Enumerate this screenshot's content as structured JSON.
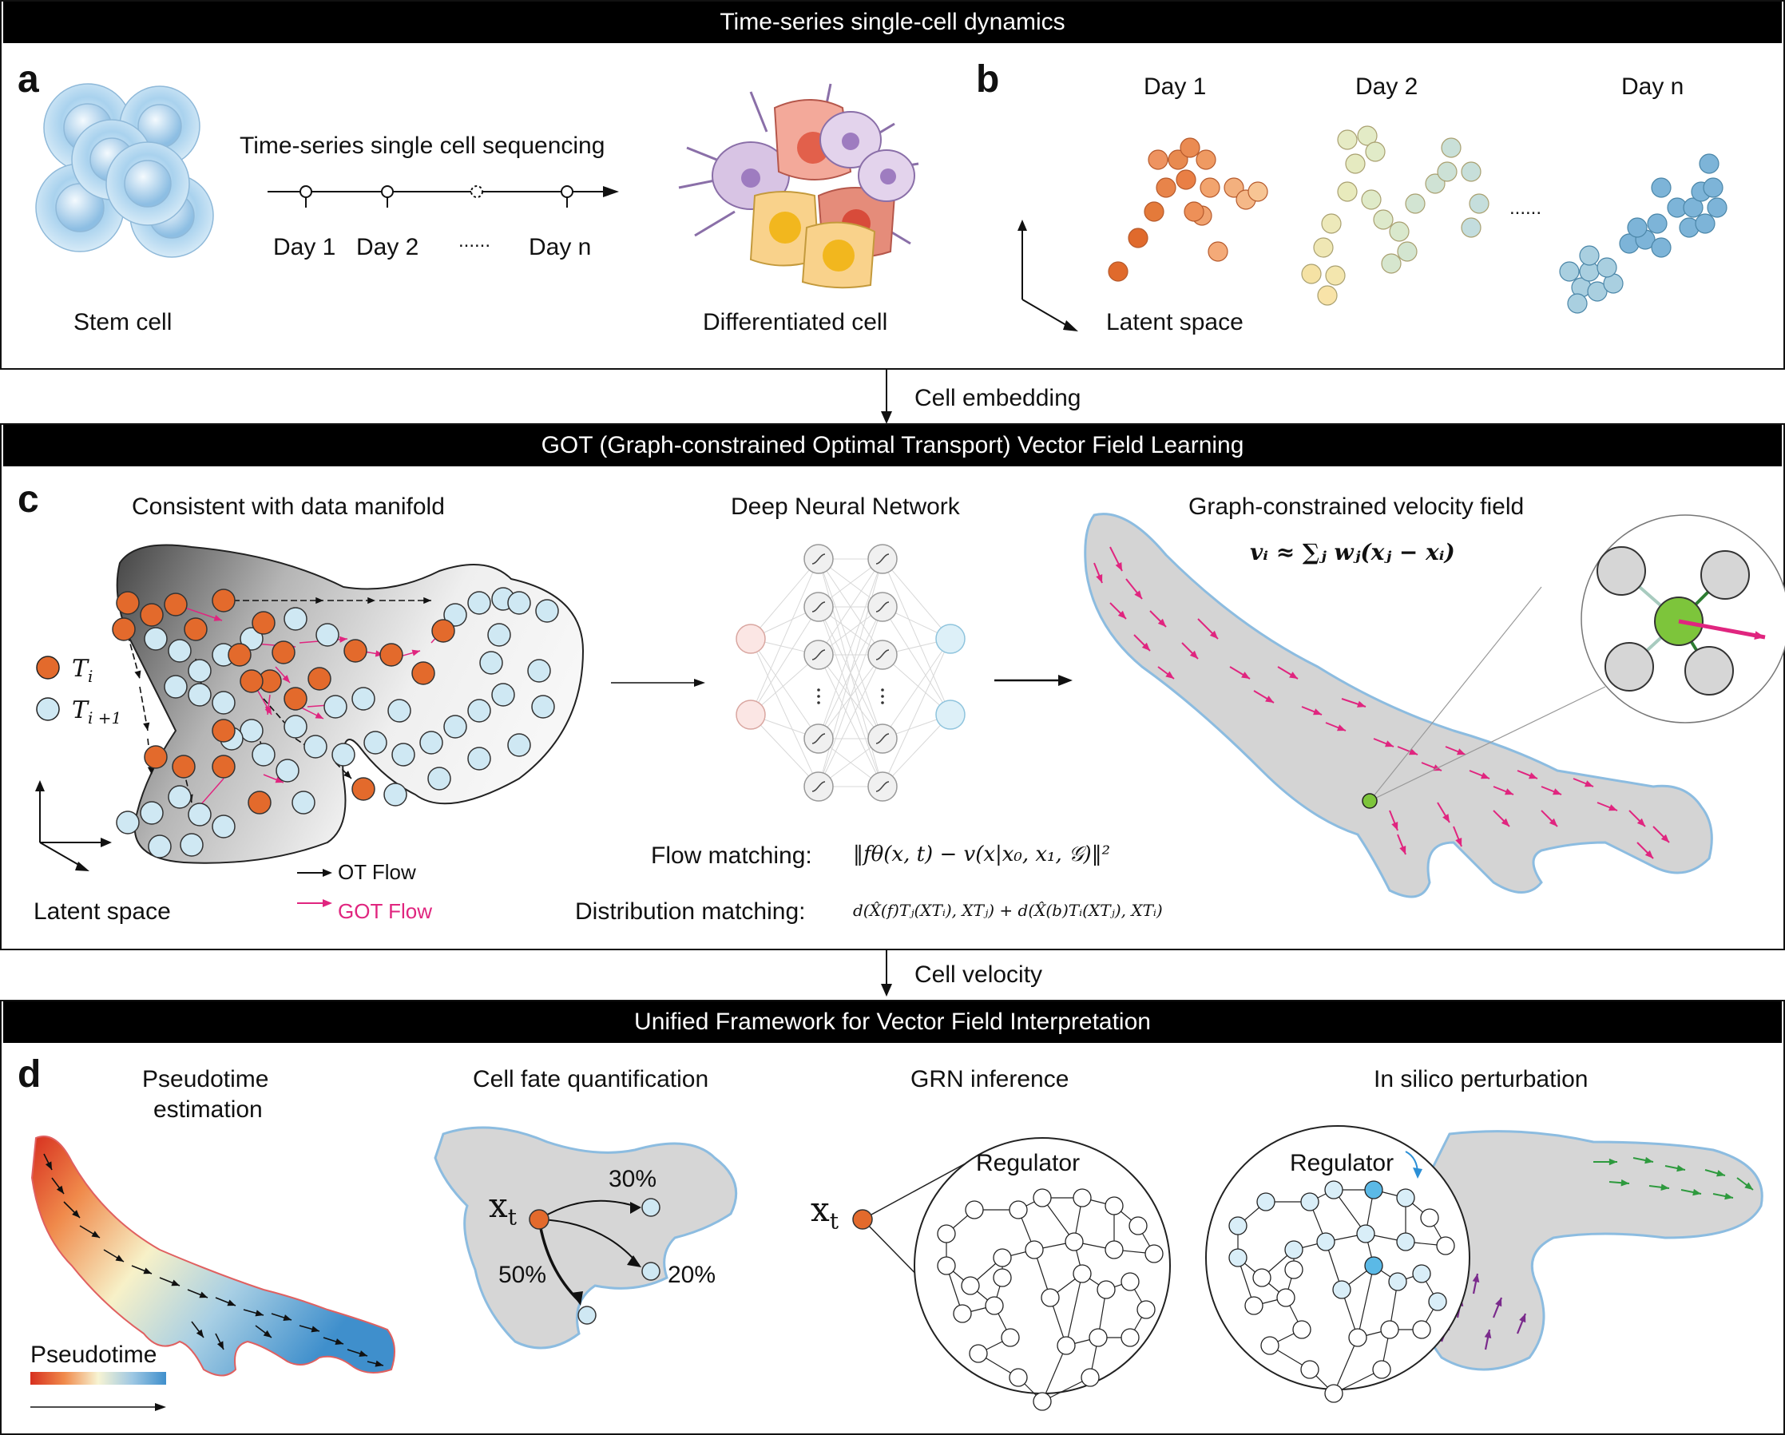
{
  "banners": {
    "top": "Time-series single-cell dynamics",
    "middle": "GOT (Graph-constrained Optimal Transport) Vector Field Learning",
    "bottom": "Unified Framework for Vector Field Interpretation"
  },
  "connectors": {
    "embedding": "Cell embedding",
    "velocity": "Cell velocity"
  },
  "panel_a": {
    "letter": "a",
    "stem_label": "Stem cell",
    "sequencing_label": "Time-series single cell sequencing",
    "timeline": [
      "Day 1",
      "Day 2",
      "......",
      "Day n"
    ],
    "differentiated_label": "Differentiated cell"
  },
  "panel_b": {
    "letter": "b",
    "days": [
      "Day 1",
      "Day 2",
      "Day n"
    ],
    "dots": "......",
    "space_label": "Latent space"
  },
  "panel_c": {
    "letter": "c",
    "manifold_title": "Consistent with data manifold",
    "legend_ti": "T",
    "legend_ti_sub": "i",
    "legend_ti1": "T",
    "legend_ti1_sub": "i +1",
    "space_label": "Latent space",
    "ot_flow": "OT Flow",
    "got_flow": "GOT Flow",
    "dnn_title": "Deep Neural Network",
    "velocity_title": "Graph-constrained velocity field",
    "formula": "vᵢ ≈ ∑ⱼ wⱼ(xⱼ − xᵢ)",
    "flow_matching_label": "Flow matching:",
    "flow_matching_formula": "‖fθ(x, t) − v(x|x₀, x₁, 𝒢)‖²",
    "distribution_matching_label": "Distribution matching:",
    "distribution_matching_formula": "d(X̂(f)Tⱼ(XTᵢ), XTⱼ) + d(X̂(b)Tᵢ(XTⱼ), XTᵢ)"
  },
  "panel_d": {
    "letter": "d",
    "pseudotime_title_1": "Pseudotime",
    "pseudotime_title_2": "estimation",
    "pseudotime_legend": "Pseudotime",
    "fate_title": "Cell fate quantification",
    "xt_label": "x",
    "xt_sub": "t",
    "fate_pct_top": "30%",
    "fate_pct_mid": "20%",
    "fate_pct_left": "50%",
    "grn_title": "GRN inference",
    "regulator_1": "Regulator",
    "perturb_title": "In silico perturbation",
    "regulator_2": "Regulator"
  },
  "colors": {
    "orange": "#E36A2C",
    "light_blue": "#CFE8F3",
    "magenta": "#E0257F",
    "green": "#7DC53B",
    "grey": "#D6D6D6"
  }
}
